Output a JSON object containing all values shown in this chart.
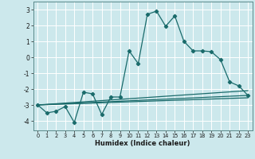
{
  "title": "",
  "xlabel": "Humidex (Indice chaleur)",
  "ylabel": "",
  "bg_color": "#cce8ec",
  "grid_color": "#ffffff",
  "line_color": "#1a6b6b",
  "xlim": [
    -0.5,
    23.5
  ],
  "ylim": [
    -4.6,
    3.5
  ],
  "yticks": [
    -4,
    -3,
    -2,
    -1,
    0,
    1,
    2,
    3
  ],
  "xticks": [
    0,
    1,
    2,
    3,
    4,
    5,
    6,
    7,
    8,
    9,
    10,
    11,
    12,
    13,
    14,
    15,
    16,
    17,
    18,
    19,
    20,
    21,
    22,
    23
  ],
  "series1_x": [
    0,
    1,
    2,
    3,
    4,
    5,
    6,
    7,
    8,
    9,
    10,
    11,
    12,
    13,
    14,
    15,
    16,
    17,
    18,
    19,
    20,
    21,
    22,
    23
  ],
  "series1_y": [
    -3.0,
    -3.5,
    -3.4,
    -3.1,
    -4.1,
    -2.2,
    -2.3,
    -3.6,
    -2.5,
    -2.5,
    0.4,
    -0.4,
    2.7,
    2.9,
    1.95,
    2.6,
    1.0,
    0.4,
    0.4,
    0.35,
    -0.15,
    -1.55,
    -1.8,
    -2.4
  ],
  "series2_x": [
    0,
    23
  ],
  "series2_y": [
    -3.0,
    -2.4
  ],
  "series3_x": [
    0,
    23
  ],
  "series3_y": [
    -3.0,
    -2.1
  ],
  "series4_x": [
    0,
    23
  ],
  "series4_y": [
    -3.0,
    -2.55
  ]
}
